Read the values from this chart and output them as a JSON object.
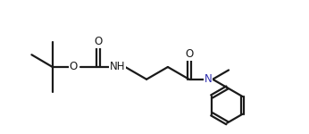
{
  "bg_color": "#ffffff",
  "line_color": "#1a1a1a",
  "n_color": "#3030b0",
  "line_width": 1.6,
  "font_size": 8.5,
  "fig_width": 3.46,
  "fig_height": 1.5,
  "xlim": [
    -0.3,
    10.8
  ],
  "ylim": [
    -2.2,
    3.2
  ]
}
